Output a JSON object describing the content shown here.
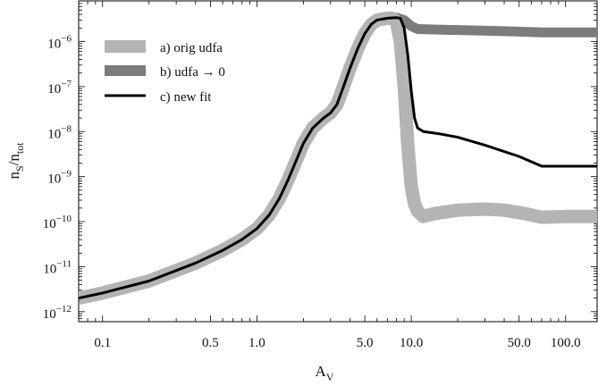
{
  "chart_data": {
    "type": "line",
    "x_scale": "log",
    "y_scale": "log",
    "xlim": [
      0.07,
      160
    ],
    "ylim": [
      6e-13,
      8e-06
    ],
    "xlabel_main": "A",
    "xlabel_sub": "V",
    "ylabel_main_1": "n",
    "ylabel_sub_1": "S",
    "ylabel_slash": "/n",
    "ylabel_sub_2": "tot",
    "x_ticks": [
      {
        "value": 0.1,
        "label": "0.1"
      },
      {
        "value": 0.5,
        "label": "0.5"
      },
      {
        "value": 1.0,
        "label": "1.0"
      },
      {
        "value": 5.0,
        "label": "5.0"
      },
      {
        "value": 10.0,
        "label": "10.0"
      },
      {
        "value": 50.0,
        "label": "50.0"
      },
      {
        "value": 100.0,
        "label": "100.0"
      }
    ],
    "y_ticks": [
      {
        "value": 1e-12,
        "base": "10",
        "exp": "−12"
      },
      {
        "value": 1e-11,
        "base": "10",
        "exp": "−11"
      },
      {
        "value": 1e-10,
        "base": "10",
        "exp": "−10"
      },
      {
        "value": 1e-09,
        "base": "10",
        "exp": "−9"
      },
      {
        "value": 1e-08,
        "base": "10",
        "exp": "−8"
      },
      {
        "value": 1e-07,
        "base": "10",
        "exp": "−7"
      },
      {
        "value": 1e-06,
        "base": "10",
        "exp": "−6"
      }
    ],
    "legend_position": "top-left",
    "series": [
      {
        "name": "a) orig udfa",
        "color": "#b4b4b4",
        "style": "very-thick",
        "points": [
          [
            0.07,
            2e-12
          ],
          [
            0.1,
            2.6e-12
          ],
          [
            0.2,
            4.8e-12
          ],
          [
            0.4,
            1.2e-11
          ],
          [
            0.6,
            2.3e-11
          ],
          [
            0.8,
            4e-11
          ],
          [
            1.0,
            7e-11
          ],
          [
            1.2,
            1.4e-10
          ],
          [
            1.4,
            3.3e-10
          ],
          [
            1.6,
            8.8e-10
          ],
          [
            1.8,
            2.3e-09
          ],
          [
            2.0,
            5.5e-09
          ],
          [
            2.3,
            1.2e-08
          ],
          [
            2.7,
            2e-08
          ],
          [
            3.0,
            2.6e-08
          ],
          [
            3.3,
            4e-08
          ],
          [
            3.6,
            9e-08
          ],
          [
            4.0,
            2.5e-07
          ],
          [
            4.5,
            7e-07
          ],
          [
            5.0,
            1.5e-06
          ],
          [
            5.5,
            2.4e-06
          ],
          [
            6.0,
            3e-06
          ],
          [
            7.0,
            3.3e-06
          ],
          [
            7.5,
            3.3e-06
          ],
          [
            8.0,
            2.8e-06
          ],
          [
            8.5,
            1e-06
          ],
          [
            9.0,
            1e-07
          ],
          [
            9.5,
            5e-09
          ],
          [
            10.0,
            6e-10
          ],
          [
            10.5,
            2.5e-10
          ],
          [
            11.0,
            1.7e-10
          ],
          [
            12.0,
            1.3e-10
          ],
          [
            14.0,
            1.5e-10
          ],
          [
            20.0,
            1.8e-10
          ],
          [
            30.0,
            1.9e-10
          ],
          [
            40.0,
            1.8e-10
          ],
          [
            55.0,
            1.5e-10
          ],
          [
            70.0,
            1.25e-10
          ],
          [
            100.0,
            1.3e-10
          ],
          [
            160.0,
            1.3e-10
          ]
        ]
      },
      {
        "name": "b) udfa → 0",
        "color": "#7c7c7c",
        "style": "thick",
        "points": [
          [
            0.07,
            2e-12
          ],
          [
            0.1,
            2.6e-12
          ],
          [
            0.2,
            4.8e-12
          ],
          [
            0.4,
            1.2e-11
          ],
          [
            0.6,
            2.3e-11
          ],
          [
            0.8,
            4e-11
          ],
          [
            1.0,
            7e-11
          ],
          [
            1.2,
            1.4e-10
          ],
          [
            1.4,
            3.3e-10
          ],
          [
            1.6,
            8.8e-10
          ],
          [
            1.8,
            2.3e-09
          ],
          [
            2.0,
            5.5e-09
          ],
          [
            2.3,
            1.2e-08
          ],
          [
            2.7,
            2e-08
          ],
          [
            3.0,
            2.6e-08
          ],
          [
            3.3,
            4e-08
          ],
          [
            3.6,
            9e-08
          ],
          [
            4.0,
            2.5e-07
          ],
          [
            4.5,
            7e-07
          ],
          [
            5.0,
            1.5e-06
          ],
          [
            5.5,
            2.4e-06
          ],
          [
            6.0,
            3e-06
          ],
          [
            7.0,
            3.3e-06
          ],
          [
            8.0,
            3.4e-06
          ],
          [
            9.0,
            3e-06
          ],
          [
            10.0,
            2.2e-06
          ],
          [
            11.0,
            1.9e-06
          ],
          [
            14.0,
            1.85e-06
          ],
          [
            20.0,
            1.8e-06
          ],
          [
            40.0,
            1.7e-06
          ],
          [
            70.0,
            1.6e-06
          ],
          [
            160.0,
            1.6e-06
          ]
        ]
      },
      {
        "name": "c) new fit",
        "color": "#000000",
        "style": "thin",
        "points": [
          [
            0.07,
            2e-12
          ],
          [
            0.1,
            2.6e-12
          ],
          [
            0.2,
            4.8e-12
          ],
          [
            0.4,
            1.2e-11
          ],
          [
            0.6,
            2.3e-11
          ],
          [
            0.8,
            4e-11
          ],
          [
            1.0,
            7e-11
          ],
          [
            1.2,
            1.4e-10
          ],
          [
            1.4,
            3.3e-10
          ],
          [
            1.6,
            8.8e-10
          ],
          [
            1.8,
            2.3e-09
          ],
          [
            2.0,
            5.5e-09
          ],
          [
            2.3,
            1.2e-08
          ],
          [
            2.7,
            2e-08
          ],
          [
            3.0,
            2.6e-08
          ],
          [
            3.3,
            4e-08
          ],
          [
            3.6,
            9e-08
          ],
          [
            4.0,
            2.5e-07
          ],
          [
            4.5,
            7e-07
          ],
          [
            5.0,
            1.5e-06
          ],
          [
            5.5,
            2.4e-06
          ],
          [
            6.0,
            3e-06
          ],
          [
            7.0,
            3.3e-06
          ],
          [
            8.0,
            3.4e-06
          ],
          [
            8.5,
            3.3e-06
          ],
          [
            9.0,
            2e-06
          ],
          [
            9.5,
            5e-07
          ],
          [
            10.0,
            8e-08
          ],
          [
            10.5,
            2e-08
          ],
          [
            11.0,
            1.2e-08
          ],
          [
            12.0,
            1e-08
          ],
          [
            15.0,
            9e-09
          ],
          [
            20.0,
            7.5e-09
          ],
          [
            30.0,
            5e-09
          ],
          [
            50.0,
            2.8e-09
          ],
          [
            70.0,
            1.7e-09
          ],
          [
            100.0,
            1.7e-09
          ],
          [
            160.0,
            1.7e-09
          ]
        ]
      }
    ]
  }
}
